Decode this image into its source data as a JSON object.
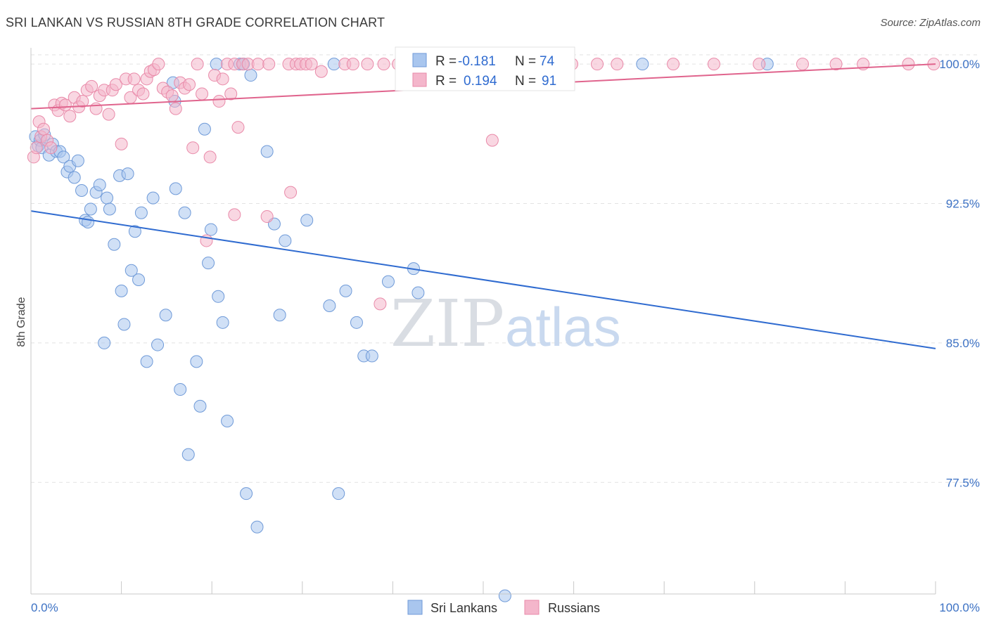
{
  "title": "SRI LANKAN VS RUSSIAN 8TH GRADE CORRELATION CHART",
  "source": "Source: ZipAtlas.com",
  "watermark": {
    "zip": "ZIP",
    "atlas": "atlas"
  },
  "chart_data": {
    "type": "scatter",
    "xlabel": "",
    "ylabel": "8th Grade",
    "xlim": [
      0,
      100
    ],
    "ylim": [
      71.5,
      100.8
    ],
    "x_tick_labels": [
      "0.0%",
      "100.0%"
    ],
    "y_ticks": [
      77.5,
      85.0,
      92.5,
      100.0
    ],
    "y_tick_labels": [
      "77.5%",
      "85.0%",
      "92.5%",
      "100.0%"
    ],
    "grid": true,
    "legend_position": "top-center",
    "stats": [
      {
        "r_label": "R =",
        "r": "-0.181",
        "n_label": "N =",
        "n": "74"
      },
      {
        "r_label": "R =",
        "r": "0.194",
        "n_label": "N =",
        "n": "91"
      }
    ],
    "series": [
      {
        "name": "Sri Lankans",
        "color": "#a9c6ee",
        "stroke": "#6f9ad8",
        "trend": {
          "x": [
            0,
            100
          ],
          "y": [
            92.1,
            84.7
          ],
          "color": "#2f6bd0"
        },
        "points": [
          [
            0.5,
            96.1
          ],
          [
            0.8,
            95.6
          ],
          [
            1.0,
            95.9
          ],
          [
            1.2,
            95.5
          ],
          [
            1.5,
            96.2
          ],
          [
            2.0,
            95.1
          ],
          [
            2.4,
            95.7
          ],
          [
            2.8,
            95.3
          ],
          [
            3.2,
            95.3
          ],
          [
            3.6,
            95.0
          ],
          [
            4.0,
            94.2
          ],
          [
            4.3,
            94.5
          ],
          [
            4.8,
            93.9
          ],
          [
            5.2,
            94.8
          ],
          [
            5.6,
            93.2
          ],
          [
            6.0,
            91.6
          ],
          [
            6.3,
            91.5
          ],
          [
            6.6,
            92.2
          ],
          [
            7.2,
            93.1
          ],
          [
            7.6,
            93.5
          ],
          [
            8.1,
            85.0
          ],
          [
            8.4,
            92.8
          ],
          [
            8.7,
            92.2
          ],
          [
            9.2,
            90.3
          ],
          [
            9.8,
            94.0
          ],
          [
            10.0,
            87.8
          ],
          [
            10.3,
            86.0
          ],
          [
            10.7,
            94.1
          ],
          [
            11.1,
            88.9
          ],
          [
            11.5,
            91.0
          ],
          [
            11.9,
            88.4
          ],
          [
            12.2,
            92.0
          ],
          [
            12.8,
            84.0
          ],
          [
            13.5,
            92.8
          ],
          [
            14.0,
            84.9
          ],
          [
            14.9,
            86.5
          ],
          [
            15.7,
            99.0
          ],
          [
            15.9,
            98.0
          ],
          [
            16.0,
            93.3
          ],
          [
            16.5,
            82.5
          ],
          [
            17.0,
            92.0
          ],
          [
            17.4,
            79.0
          ],
          [
            18.3,
            84.0
          ],
          [
            18.7,
            81.6
          ],
          [
            19.2,
            96.5
          ],
          [
            19.6,
            89.3
          ],
          [
            19.9,
            91.1
          ],
          [
            20.5,
            100.0
          ],
          [
            20.7,
            87.5
          ],
          [
            21.2,
            86.1
          ],
          [
            21.7,
            80.8
          ],
          [
            23.1,
            100.0
          ],
          [
            23.5,
            100.0
          ],
          [
            23.8,
            76.9
          ],
          [
            24.3,
            99.4
          ],
          [
            25.0,
            75.1
          ],
          [
            26.1,
            95.3
          ],
          [
            26.9,
            91.4
          ],
          [
            27.5,
            86.5
          ],
          [
            28.1,
            90.5
          ],
          [
            30.5,
            91.6
          ],
          [
            33.0,
            87.0
          ],
          [
            33.5,
            100.0
          ],
          [
            34.0,
            76.9
          ],
          [
            34.8,
            87.8
          ],
          [
            36.0,
            86.1
          ],
          [
            36.8,
            84.3
          ],
          [
            37.7,
            84.3
          ],
          [
            39.5,
            88.3
          ],
          [
            42.3,
            89.0
          ],
          [
            42.8,
            87.7
          ],
          [
            67.6,
            100.0
          ],
          [
            81.4,
            100.0
          ],
          [
            52.4,
            71.4
          ]
        ]
      },
      {
        "name": "Russians",
        "color": "#f4b6cb",
        "stroke": "#e98aa9",
        "trend": {
          "x": [
            0,
            100
          ],
          "y": [
            97.6,
            100.0
          ],
          "color": "#e0648d"
        },
        "points": [
          [
            0.3,
            95.0
          ],
          [
            0.6,
            95.5
          ],
          [
            0.9,
            96.9
          ],
          [
            1.1,
            96.1
          ],
          [
            1.4,
            96.5
          ],
          [
            1.8,
            95.9
          ],
          [
            2.2,
            95.5
          ],
          [
            2.6,
            97.8
          ],
          [
            3.0,
            97.5
          ],
          [
            3.4,
            97.9
          ],
          [
            3.8,
            97.8
          ],
          [
            4.3,
            97.2
          ],
          [
            4.8,
            98.2
          ],
          [
            5.3,
            97.7
          ],
          [
            5.7,
            98.0
          ],
          [
            6.2,
            98.6
          ],
          [
            6.7,
            98.8
          ],
          [
            7.2,
            97.6
          ],
          [
            7.6,
            98.3
          ],
          [
            8.1,
            98.6
          ],
          [
            8.6,
            97.3
          ],
          [
            9.0,
            98.6
          ],
          [
            9.4,
            98.9
          ],
          [
            10.0,
            95.7
          ],
          [
            10.5,
            99.2
          ],
          [
            11.0,
            98.2
          ],
          [
            11.4,
            99.2
          ],
          [
            11.9,
            98.6
          ],
          [
            12.4,
            98.4
          ],
          [
            12.8,
            99.2
          ],
          [
            13.2,
            99.6
          ],
          [
            13.6,
            99.7
          ],
          [
            14.1,
            100.0
          ],
          [
            14.6,
            98.7
          ],
          [
            15.1,
            98.5
          ],
          [
            15.6,
            98.3
          ],
          [
            16.0,
            97.6
          ],
          [
            16.5,
            99.0
          ],
          [
            17.0,
            98.7
          ],
          [
            17.5,
            98.9
          ],
          [
            17.9,
            95.5
          ],
          [
            18.4,
            100.0
          ],
          [
            18.9,
            98.4
          ],
          [
            19.4,
            90.5
          ],
          [
            19.8,
            95.0
          ],
          [
            20.3,
            99.4
          ],
          [
            20.8,
            98.0
          ],
          [
            21.2,
            99.2
          ],
          [
            21.7,
            100.0
          ],
          [
            22.1,
            98.4
          ],
          [
            22.5,
            100.0
          ],
          [
            22.9,
            96.6
          ],
          [
            23.4,
            100.0
          ],
          [
            24.0,
            100.0
          ],
          [
            25.1,
            100.0
          ],
          [
            26.3,
            100.0
          ],
          [
            28.5,
            100.0
          ],
          [
            29.3,
            100.0
          ],
          [
            29.8,
            100.0
          ],
          [
            30.4,
            100.0
          ],
          [
            31.0,
            100.0
          ],
          [
            32.1,
            99.6
          ],
          [
            34.7,
            100.0
          ],
          [
            35.6,
            100.0
          ],
          [
            37.2,
            100.0
          ],
          [
            39.0,
            100.0
          ],
          [
            40.6,
            100.0
          ],
          [
            42.3,
            100.0
          ],
          [
            44.4,
            100.0
          ],
          [
            46.7,
            100.0
          ],
          [
            49.3,
            100.0
          ],
          [
            51.0,
            95.9
          ],
          [
            51.7,
            100.0
          ],
          [
            53.7,
            100.0
          ],
          [
            55.3,
            100.0
          ],
          [
            57.1,
            100.0
          ],
          [
            59.8,
            100.0
          ],
          [
            62.6,
            100.0
          ],
          [
            64.8,
            100.0
          ],
          [
            71.0,
            100.0
          ],
          [
            75.5,
            100.0
          ],
          [
            80.5,
            100.0
          ],
          [
            85.3,
            100.0
          ],
          [
            89.0,
            100.0
          ],
          [
            92.0,
            100.0
          ],
          [
            97.0,
            100.0
          ],
          [
            99.8,
            100.0
          ],
          [
            22.5,
            91.9
          ],
          [
            26.1,
            91.8
          ],
          [
            28.7,
            93.1
          ],
          [
            38.6,
            87.1
          ]
        ]
      }
    ]
  }
}
